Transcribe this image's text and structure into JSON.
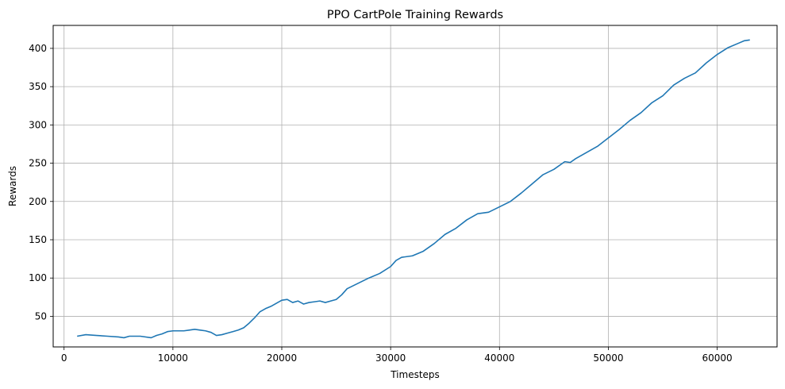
{
  "chart_data": {
    "type": "line",
    "title": "PPO CartPole Training Rewards",
    "xlabel": "Timesteps",
    "ylabel": "Rewards",
    "xlim": [
      -1000,
      65500
    ],
    "ylim": [
      10,
      430
    ],
    "xticks": [
      0,
      10000,
      20000,
      30000,
      40000,
      50000,
      60000
    ],
    "yticks": [
      50,
      100,
      150,
      200,
      250,
      300,
      350,
      400
    ],
    "grid": true,
    "colors": {
      "line": "#1f77b4",
      "grid": "#b0b0b0",
      "axes": "#000000"
    },
    "series": [
      {
        "x": [
          1200,
          2000,
          3000,
          4000,
          5000,
          5500,
          6000,
          7000,
          8000,
          8500,
          9000,
          9500,
          10000,
          10500,
          11000,
          11500,
          12000,
          12500,
          13000,
          13500,
          14000,
          14500,
          15000,
          15500,
          16000,
          16500,
          17000,
          17500,
          18000,
          18500,
          19000,
          19500,
          20000,
          20500,
          21000,
          21500,
          22000,
          22500,
          23000,
          23500,
          24000,
          24500,
          25000,
          25500,
          26000,
          27000,
          28000,
          29000,
          30000,
          30500,
          31000,
          32000,
          33000,
          34000,
          35000,
          36000,
          37000,
          38000,
          39000,
          40000,
          41000,
          42000,
          43000,
          44000,
          45000,
          46000,
          46500,
          47000,
          48000,
          49000,
          50000,
          51000,
          52000,
          53000,
          54000,
          55000,
          56000,
          57000,
          58000,
          59000,
          60000,
          61000,
          62000,
          62500,
          63000
        ],
        "y": [
          24,
          26,
          25,
          24,
          23,
          22,
          24,
          24,
          22,
          25,
          27,
          30,
          31,
          31,
          31,
          32,
          33,
          32,
          31,
          29,
          25,
          26,
          28,
          30,
          32,
          35,
          41,
          48,
          56,
          60,
          63,
          67,
          71,
          72,
          68,
          70,
          66,
          68,
          69,
          70,
          68,
          70,
          72,
          78,
          86,
          93,
          100,
          106,
          115,
          123,
          127,
          129,
          135,
          145,
          157,
          165,
          176,
          184,
          186,
          193,
          200,
          211,
          223,
          235,
          242,
          252,
          251,
          256,
          264,
          272,
          283,
          294,
          306,
          316,
          329,
          338,
          352,
          361,
          368,
          381,
          392,
          401,
          407,
          410,
          411
        ]
      }
    ]
  }
}
